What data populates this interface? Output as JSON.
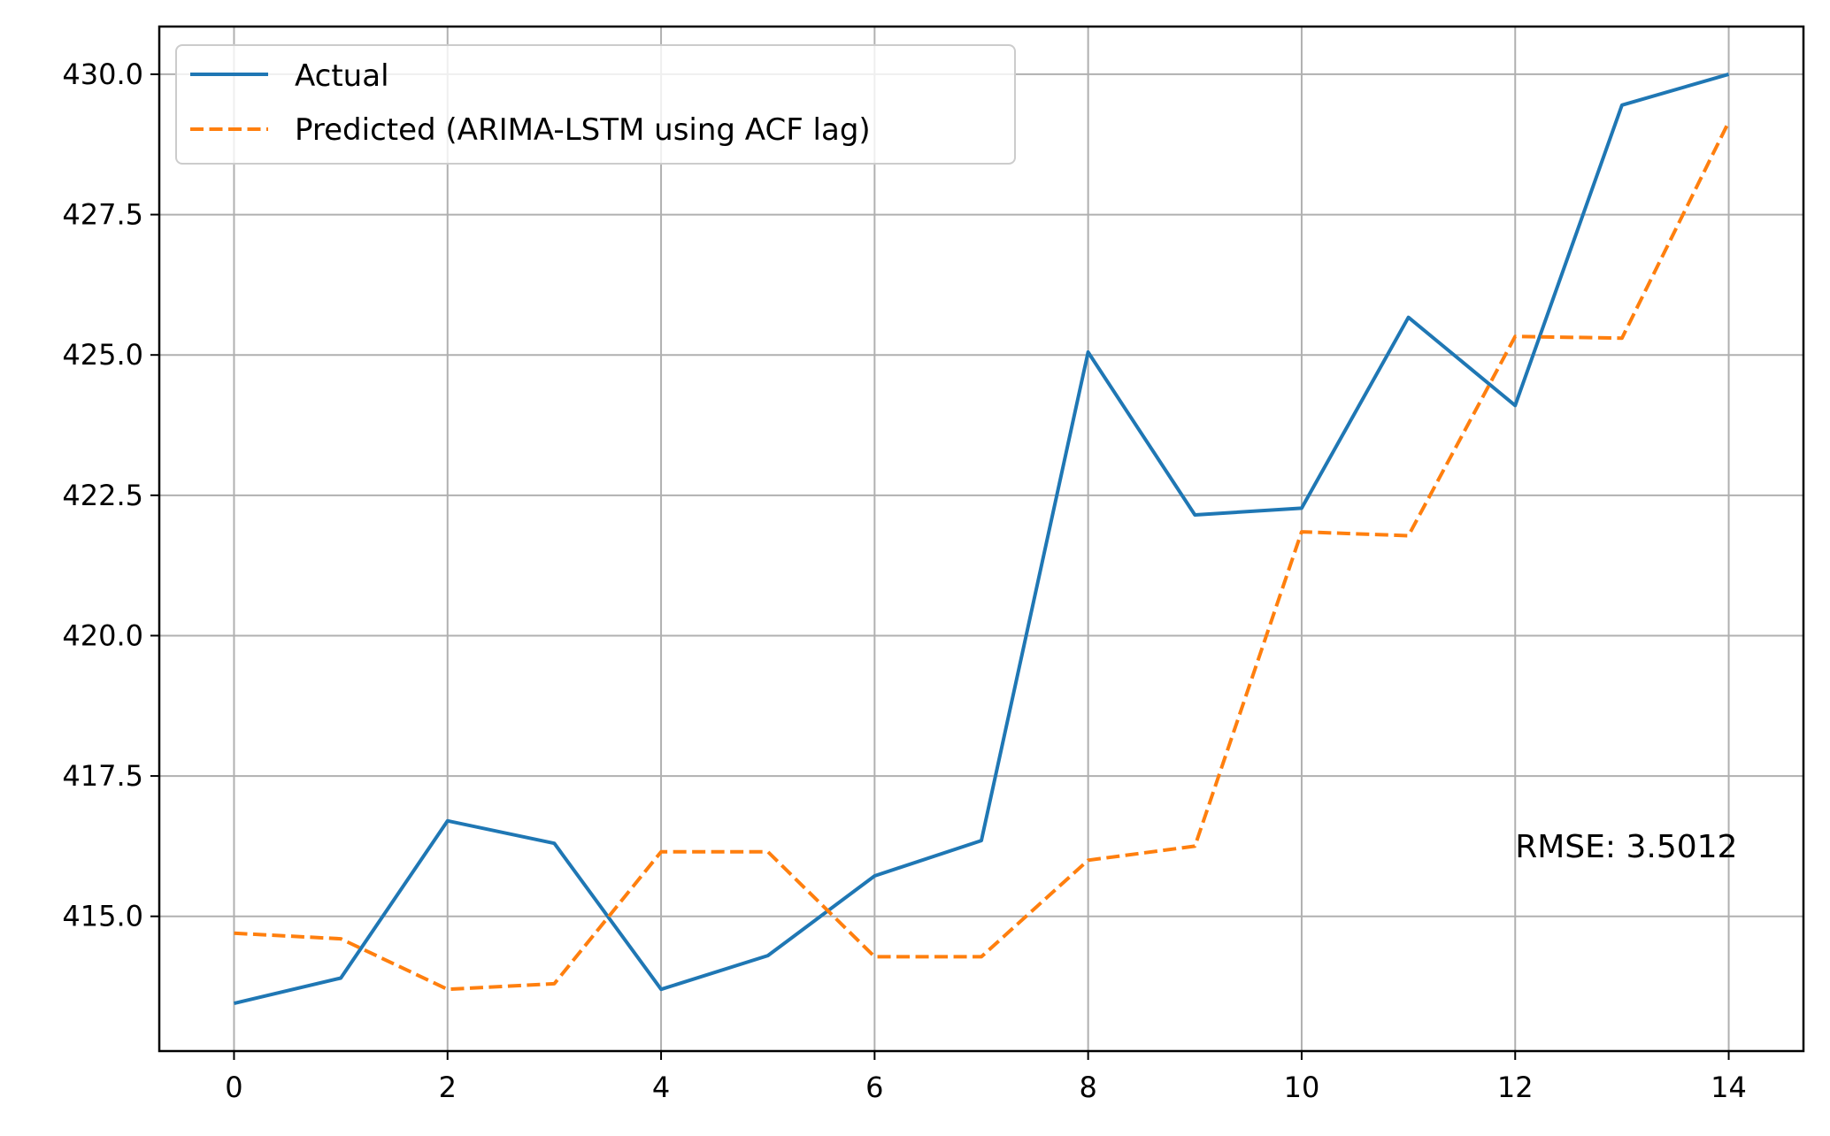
{
  "chart_data": {
    "type": "line",
    "title": "",
    "xlabel": "",
    "ylabel": "",
    "x": [
      0,
      1,
      2,
      3,
      4,
      5,
      6,
      7,
      8,
      9,
      10,
      11,
      12,
      13,
      14
    ],
    "xlim": [
      -0.7,
      14.7
    ],
    "ylim": [
      412.6,
      430.85
    ],
    "xticks": [
      0,
      2,
      4,
      6,
      8,
      10,
      12,
      14
    ],
    "xtick_labels": [
      "0",
      "2",
      "4",
      "6",
      "8",
      "10",
      "12",
      "14"
    ],
    "yticks": [
      415.0,
      417.5,
      420.0,
      422.5,
      425.0,
      427.5,
      430.0
    ],
    "ytick_labels": [
      "415.0",
      "417.5",
      "420.0",
      "422.5",
      "425.0",
      "427.5",
      "430.0"
    ],
    "grid": true,
    "legend_position": "top-left",
    "series": [
      {
        "name": "Actual",
        "color": "#1f77b4",
        "style": "solid",
        "values": [
          413.45,
          413.9,
          416.7,
          416.3,
          413.7,
          414.3,
          415.72,
          416.35,
          425.05,
          422.15,
          422.27,
          425.67,
          424.1,
          429.45,
          430.0
        ]
      },
      {
        "name": "Predicted (ARIMA-LSTM using ACF lag)",
        "color": "#ff7f0e",
        "style": "dashed",
        "values": [
          414.7,
          414.6,
          413.7,
          413.8,
          416.15,
          416.15,
          414.28,
          414.28,
          416.0,
          416.25,
          421.85,
          421.78,
          425.33,
          425.3,
          429.15
        ]
      }
    ],
    "annotations": [
      {
        "text": "RMSE: 3.5012",
        "x": 12.0,
        "y": 416.05
      }
    ]
  }
}
